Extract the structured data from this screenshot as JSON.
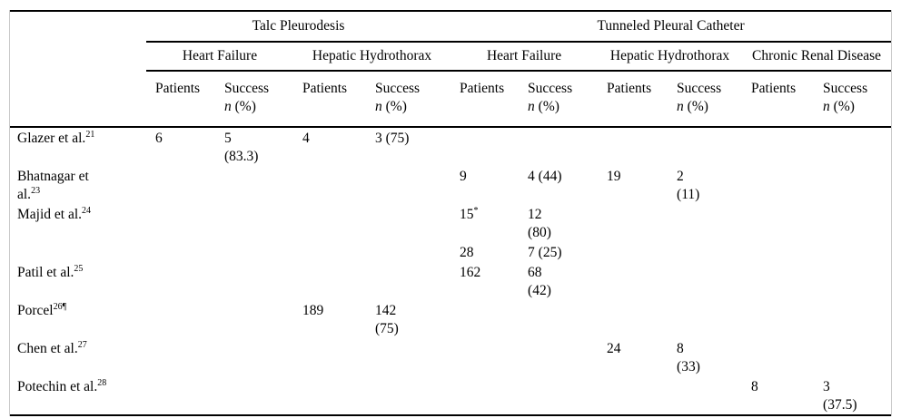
{
  "table": {
    "groups": [
      {
        "label": "Talc Pleurodesis",
        "subgroups": [
          "Heart Failure",
          "Hepatic Hydrothorax"
        ]
      },
      {
        "label": "Tunneled Pleural Catheter",
        "subgroups": [
          "Heart Failure",
          "Hepatic Hydrothorax",
          "Chronic Renal Disease"
        ]
      }
    ],
    "col_headers": {
      "patients": "Patients",
      "success": "Success",
      "n": "n",
      "pct": "(%)"
    },
    "rows": [
      {
        "label": "Glazer et al.",
        "sup": "21",
        "cells": [
          {
            "v": "6"
          },
          {
            "v": "5\n(83.3)"
          },
          {
            "v": "4"
          },
          {
            "v": "3 (75)"
          },
          {},
          {},
          {},
          {},
          {},
          {}
        ]
      },
      {
        "label": "Bhatnagar et\nal.",
        "sup": "23",
        "cells": [
          {},
          {},
          {},
          {},
          {
            "v": "9"
          },
          {
            "v": "4 (44)"
          },
          {
            "v": "19"
          },
          {
            "v": "2\n(11)"
          },
          {},
          {}
        ]
      },
      {
        "label": "Majid et al.",
        "sup": "24",
        "cells": [
          {},
          {},
          {},
          {},
          {
            "v": "15",
            "sup": "*"
          },
          {
            "v": "12\n(80)"
          },
          {},
          {},
          {},
          {}
        ]
      },
      {
        "label": "",
        "sup": "",
        "cells": [
          {},
          {},
          {},
          {},
          {
            "v": "28"
          },
          {
            "v": "7 (25)"
          },
          {},
          {},
          {},
          {}
        ]
      },
      {
        "label": "Patil et al.",
        "sup": "25",
        "cells": [
          {},
          {},
          {},
          {},
          {
            "v": "162"
          },
          {
            "v": "68\n(42)"
          },
          {},
          {},
          {},
          {}
        ]
      },
      {
        "label": "Porcel",
        "sup": "26¶",
        "cells": [
          {},
          {},
          {
            "v": "189"
          },
          {
            "v": "142\n(75)"
          },
          {},
          {},
          {},
          {},
          {},
          {}
        ]
      },
      {
        "label": "Chen et al.",
        "sup": "27",
        "cells": [
          {},
          {},
          {},
          {},
          {},
          {},
          {
            "v": "24"
          },
          {
            "v": "8\n(33)"
          },
          {},
          {}
        ]
      },
      {
        "label": "Potechin et al.",
        "sup": "28",
        "cells": [
          {},
          {},
          {},
          {},
          {},
          {},
          {},
          {},
          {
            "v": "8"
          },
          {
            "v": "3\n(37.5)"
          }
        ]
      }
    ]
  }
}
